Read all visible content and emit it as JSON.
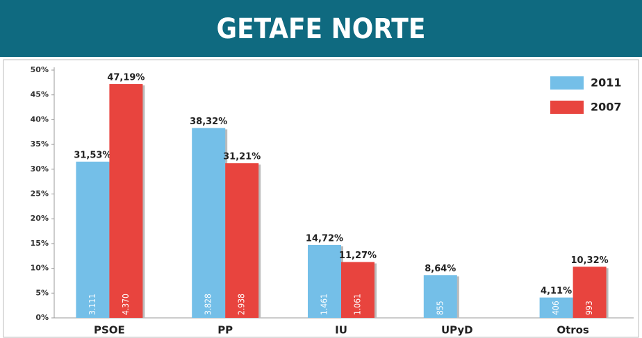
{
  "chart_data": {
    "type": "bar",
    "title": "GETAFE NORTE",
    "categories": [
      "PSOE",
      "PP",
      "IU",
      "UPyD",
      "Otros"
    ],
    "series": [
      {
        "name": "2011",
        "color": "#74bfe8",
        "values": [
          31.53,
          38.32,
          14.72,
          8.64,
          4.11
        ],
        "value_labels": [
          "31,53%",
          "38,32%",
          "14,72%",
          "8,64%",
          "4,11%"
        ],
        "counts": [
          3111,
          3828,
          1461,
          855,
          406
        ],
        "count_labels": [
          "3.111",
          "3.828",
          "1.461",
          "855",
          "406"
        ]
      },
      {
        "name": "2007",
        "color": "#e8443e",
        "values": [
          47.19,
          31.21,
          11.27,
          null,
          10.32
        ],
        "value_labels": [
          "47,19%",
          "31,21%",
          "11,27%",
          null,
          "10,32%"
        ],
        "counts": [
          4370,
          2938,
          1061,
          null,
          993
        ],
        "count_labels": [
          "4.370",
          "2.938",
          "1.061",
          null,
          "993"
        ]
      }
    ],
    "ylim": [
      0,
      50
    ],
    "yticks": [
      {
        "value": 0,
        "label": "0%"
      },
      {
        "value": 5,
        "label": "5%"
      },
      {
        "value": 10,
        "label": "10%"
      },
      {
        "value": 15,
        "label": "15%"
      },
      {
        "value": 20,
        "label": "20%"
      },
      {
        "value": 25,
        "label": "25%"
      },
      {
        "value": 30,
        "label": "30%"
      },
      {
        "value": 35,
        "label": "35%"
      },
      {
        "value": 40,
        "label": "40%"
      },
      {
        "value": 45,
        "label": "45%"
      },
      {
        "value": 50,
        "label": "50%"
      }
    ],
    "grid": false,
    "legend": "top-right"
  }
}
